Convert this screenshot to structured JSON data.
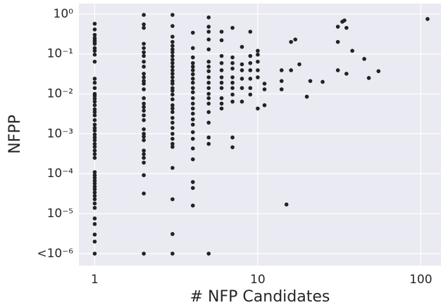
{
  "chart_data": {
    "type": "scatter",
    "xlabel": "# NFP Candidates",
    "ylabel": "NFPP",
    "xscale": "log",
    "yscale": "log",
    "grid": true,
    "color": "#222222",
    "xlim": [
      0.8,
      133
    ],
    "ylim": [
      5e-07,
      1.83
    ],
    "xticks": [
      1,
      10,
      100
    ],
    "yticks": [
      {
        "value": 1,
        "label": "10⁰"
      },
      {
        "value": 0.1,
        "label": "10⁻¹"
      },
      {
        "value": 0.01,
        "label": "10⁻²"
      },
      {
        "value": 0.001,
        "label": "10⁻³"
      },
      {
        "value": 0.0001,
        "label": "10⁻⁴"
      },
      {
        "value": 1e-05,
        "label": "10⁻⁵"
      },
      {
        "value": 1e-06,
        "label": "<10⁻⁶"
      }
    ],
    "x": [
      1,
      1,
      1,
      1,
      1,
      1,
      1,
      1,
      1,
      1,
      1,
      1,
      1,
      1,
      1,
      1,
      1,
      1,
      1,
      1,
      1,
      1,
      1,
      1,
      1,
      1,
      1,
      1,
      1,
      1,
      1,
      1,
      1,
      1,
      1,
      1,
      1,
      1,
      1,
      1,
      1,
      1,
      1,
      1,
      1,
      1,
      1,
      1,
      1,
      1,
      1,
      2,
      2,
      2,
      2,
      2,
      2,
      2,
      2,
      2,
      2,
      2,
      2,
      2,
      2,
      2,
      2,
      2,
      2,
      2,
      2,
      2,
      2,
      2,
      2,
      2,
      2,
      2,
      2,
      2,
      2,
      2,
      3,
      3,
      3,
      3,
      3,
      3,
      3,
      3,
      3,
      3,
      3,
      3,
      3,
      3,
      3,
      3,
      3,
      3,
      3,
      3,
      3,
      3,
      3,
      3,
      3,
      3,
      3,
      3,
      3,
      3,
      3,
      3,
      3,
      3,
      4,
      4,
      4,
      4,
      4,
      4,
      4,
      4,
      4,
      4,
      4,
      4,
      4,
      4,
      4,
      4,
      4,
      4,
      4,
      4,
      4,
      4,
      4,
      4,
      5,
      5,
      5,
      5,
      5,
      5,
      5,
      5,
      5,
      5,
      5,
      5,
      5,
      5,
      5,
      5,
      5,
      5,
      5,
      6,
      6,
      6,
      6,
      6,
      6,
      6,
      6,
      6,
      6,
      6,
      7,
      7,
      7,
      7,
      7,
      7,
      7,
      7,
      7,
      7,
      7,
      8,
      8,
      8,
      8,
      8,
      8,
      9,
      9,
      9,
      9,
      9,
      9,
      9,
      10,
      10,
      10,
      10,
      10,
      10,
      11,
      11,
      11,
      14,
      14,
      14,
      15,
      16,
      16,
      17,
      18,
      20,
      21,
      25,
      31,
      31,
      31,
      33,
      34,
      35,
      35,
      38,
      45,
      48,
      55,
      110
    ],
    "values": [
      0.57,
      0.41,
      0.3,
      0.25,
      0.22,
      0.2,
      0.18,
      0.14,
      0.12,
      0.096,
      0.064,
      0.024,
      0.019,
      0.014,
      0.01,
      0.0089,
      0.0076,
      0.0064,
      0.0052,
      0.0041,
      0.0035,
      0.0029,
      0.0022,
      0.0017,
      0.0014,
      0.0012,
      0.00096,
      0.00081,
      0.00069,
      0.00056,
      0.00047,
      0.00038,
      0.00031,
      0.00025,
      0.00011,
      9.2e-05,
      7.9e-05,
      6.7e-05,
      5.7e-05,
      4.8e-05,
      4.1e-05,
      3.4e-05,
      2.8e-05,
      2.3e-05,
      1.8e-05,
      1.4e-05,
      7.6e-06,
      5.5e-06,
      3e-06,
      2e-06,
      1e-06,
      0.95,
      0.55,
      0.45,
      0.18,
      0.14,
      0.11,
      0.089,
      0.064,
      0.048,
      0.032,
      0.026,
      0.021,
      0.018,
      0.013,
      0.0078,
      0.0057,
      0.0047,
      0.0038,
      0.0029,
      0.0022,
      0.0013,
      0.001,
      0.00085,
      0.00069,
      0.00038,
      0.00031,
      0.00025,
      0.00019,
      9.2e-05,
      3.2e-05,
      1e-06,
      0.95,
      0.5,
      0.27,
      0.2,
      0.16,
      0.13,
      0.11,
      0.089,
      0.072,
      0.059,
      0.048,
      0.039,
      0.032,
      0.026,
      0.021,
      0.018,
      0.014,
      0.012,
      0.0096,
      0.0073,
      0.0052,
      0.0043,
      0.0035,
      0.0025,
      0.0019,
      0.0014,
      0.001,
      0.00075,
      0.00056,
      0.00047,
      0.00014,
      2.3e-05,
      3.1e-06,
      1e-06,
      0.34,
      0.14,
      0.082,
      0.059,
      0.048,
      0.039,
      0.031,
      0.024,
      0.019,
      0.014,
      0.011,
      0.0078,
      0.0057,
      0.0043,
      0.0032,
      0.0023,
      0.0017,
      0.0011,
      0.00075,
      0.00043,
      0.00023,
      6.2e-05,
      4.4e-05,
      1.6e-05,
      0.82,
      0.48,
      0.36,
      0.23,
      0.13,
      0.064,
      0.048,
      0.037,
      0.026,
      0.019,
      0.014,
      0.01,
      0.0078,
      0.0057,
      0.0035,
      0.0019,
      0.00081,
      0.00056,
      1e-06,
      0.36,
      0.22,
      0.089,
      0.059,
      0.039,
      0.026,
      0.019,
      0.014,
      0.0078,
      0.0057,
      0.0043,
      0.45,
      0.082,
      0.059,
      0.043,
      0.026,
      0.019,
      0.014,
      0.0096,
      0.0064,
      0.00081,
      0.00046,
      0.15,
      0.055,
      0.039,
      0.024,
      0.014,
      0.0064,
      0.36,
      0.089,
      0.059,
      0.039,
      0.024,
      0.014,
      0.0096,
      0.12,
      0.096,
      0.064,
      0.039,
      0.026,
      0.0043,
      0.018,
      0.013,
      0.0052,
      0.039,
      0.021,
      0.013,
      1.7e-05,
      0.2,
      0.039,
      0.23,
      0.055,
      0.0085,
      0.021,
      0.02,
      0.48,
      0.2,
      0.039,
      0.64,
      0.69,
      0.45,
      0.032,
      0.12,
      0.075,
      0.025,
      0.037,
      0.75
    ]
  }
}
